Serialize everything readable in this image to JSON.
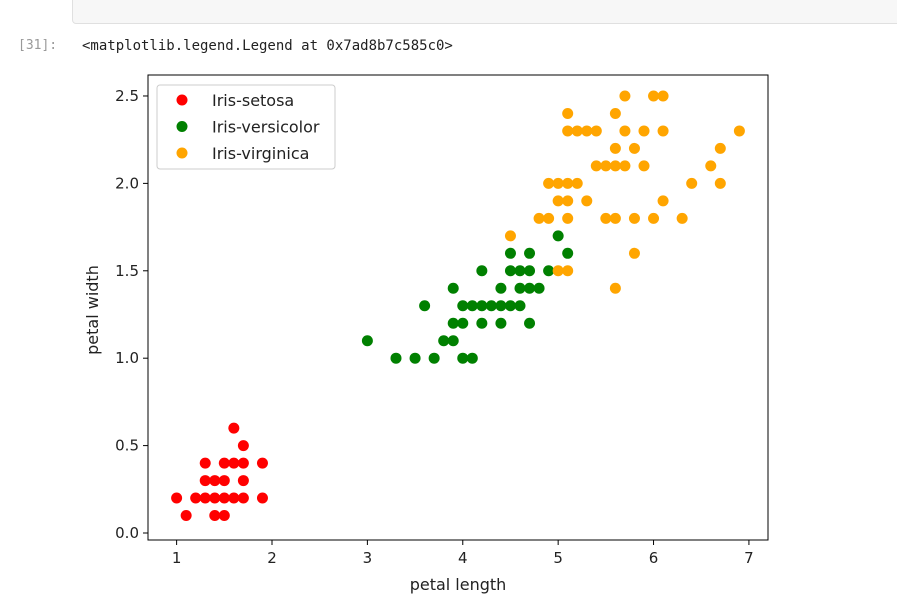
{
  "notebook": {
    "prompt": "[31]:",
    "output_text": "<matplotlib.legend.Legend at 0x7ad8b7c585c0>"
  },
  "chart_data": {
    "type": "scatter",
    "title": "",
    "xlabel": "petal length",
    "ylabel": "petal width",
    "xlim": [
      0.7,
      7.2
    ],
    "ylim": [
      -0.04,
      2.62
    ],
    "xticks": [
      1,
      2,
      3,
      4,
      5,
      6,
      7
    ],
    "yticks": [
      0.0,
      0.5,
      1.0,
      1.5,
      2.0,
      2.5
    ],
    "xtick_labels": [
      "1",
      "2",
      "3",
      "4",
      "5",
      "6",
      "7"
    ],
    "ytick_labels": [
      "0.0",
      "0.5",
      "1.0",
      "1.5",
      "2.0",
      "2.5"
    ],
    "grid": false,
    "legend_position": "top-left",
    "series": [
      {
        "name": "Iris-setosa",
        "color": "#ff0000",
        "points": [
          [
            1.0,
            0.2
          ],
          [
            1.1,
            0.1
          ],
          [
            1.2,
            0.2
          ],
          [
            1.3,
            0.2
          ],
          [
            1.3,
            0.3
          ],
          [
            1.3,
            0.4
          ],
          [
            1.4,
            0.1
          ],
          [
            1.4,
            0.2
          ],
          [
            1.4,
            0.3
          ],
          [
            1.5,
            0.1
          ],
          [
            1.5,
            0.2
          ],
          [
            1.5,
            0.3
          ],
          [
            1.5,
            0.4
          ],
          [
            1.6,
            0.2
          ],
          [
            1.6,
            0.4
          ],
          [
            1.6,
            0.6
          ],
          [
            1.7,
            0.2
          ],
          [
            1.7,
            0.3
          ],
          [
            1.7,
            0.4
          ],
          [
            1.7,
            0.5
          ],
          [
            1.9,
            0.2
          ],
          [
            1.9,
            0.4
          ]
        ]
      },
      {
        "name": "Iris-versicolor",
        "color": "#008000",
        "points": [
          [
            3.0,
            1.1
          ],
          [
            3.3,
            1.0
          ],
          [
            3.5,
            1.0
          ],
          [
            3.6,
            1.3
          ],
          [
            3.7,
            1.0
          ],
          [
            3.8,
            1.1
          ],
          [
            3.9,
            1.1
          ],
          [
            3.9,
            1.2
          ],
          [
            3.9,
            1.4
          ],
          [
            4.0,
            1.0
          ],
          [
            4.0,
            1.2
          ],
          [
            4.0,
            1.3
          ],
          [
            4.1,
            1.0
          ],
          [
            4.1,
            1.3
          ],
          [
            4.2,
            1.2
          ],
          [
            4.2,
            1.3
          ],
          [
            4.2,
            1.5
          ],
          [
            4.3,
            1.3
          ],
          [
            4.4,
            1.2
          ],
          [
            4.4,
            1.3
          ],
          [
            4.4,
            1.4
          ],
          [
            4.5,
            1.3
          ],
          [
            4.5,
            1.5
          ],
          [
            4.5,
            1.6
          ],
          [
            4.6,
            1.3
          ],
          [
            4.6,
            1.4
          ],
          [
            4.6,
            1.5
          ],
          [
            4.7,
            1.2
          ],
          [
            4.7,
            1.4
          ],
          [
            4.7,
            1.5
          ],
          [
            4.7,
            1.6
          ],
          [
            4.8,
            1.4
          ],
          [
            4.9,
            1.5
          ],
          [
            5.0,
            1.7
          ],
          [
            5.1,
            1.6
          ]
        ]
      },
      {
        "name": "Iris-virginica",
        "color": "#ffa500",
        "points": [
          [
            4.5,
            1.7
          ],
          [
            4.8,
            1.8
          ],
          [
            4.9,
            1.8
          ],
          [
            4.9,
            2.0
          ],
          [
            5.0,
            1.5
          ],
          [
            5.0,
            1.9
          ],
          [
            5.0,
            2.0
          ],
          [
            5.1,
            1.5
          ],
          [
            5.1,
            1.8
          ],
          [
            5.1,
            1.9
          ],
          [
            5.1,
            2.0
          ],
          [
            5.1,
            2.3
          ],
          [
            5.1,
            2.4
          ],
          [
            5.2,
            2.0
          ],
          [
            5.2,
            2.3
          ],
          [
            5.3,
            1.9
          ],
          [
            5.3,
            2.3
          ],
          [
            5.4,
            2.1
          ],
          [
            5.4,
            2.3
          ],
          [
            5.5,
            1.8
          ],
          [
            5.5,
            2.1
          ],
          [
            5.6,
            1.4
          ],
          [
            5.6,
            1.8
          ],
          [
            5.6,
            2.1
          ],
          [
            5.6,
            2.2
          ],
          [
            5.6,
            2.4
          ],
          [
            5.7,
            2.1
          ],
          [
            5.7,
            2.3
          ],
          [
            5.7,
            2.5
          ],
          [
            5.8,
            1.6
          ],
          [
            5.8,
            1.8
          ],
          [
            5.8,
            2.2
          ],
          [
            5.9,
            2.1
          ],
          [
            5.9,
            2.3
          ],
          [
            6.0,
            1.8
          ],
          [
            6.0,
            2.5
          ],
          [
            6.1,
            1.9
          ],
          [
            6.1,
            2.3
          ],
          [
            6.1,
            2.5
          ],
          [
            6.3,
            1.8
          ],
          [
            6.4,
            2.0
          ],
          [
            6.6,
            2.1
          ],
          [
            6.7,
            2.0
          ],
          [
            6.7,
            2.2
          ],
          [
            6.9,
            2.3
          ]
        ]
      }
    ]
  }
}
